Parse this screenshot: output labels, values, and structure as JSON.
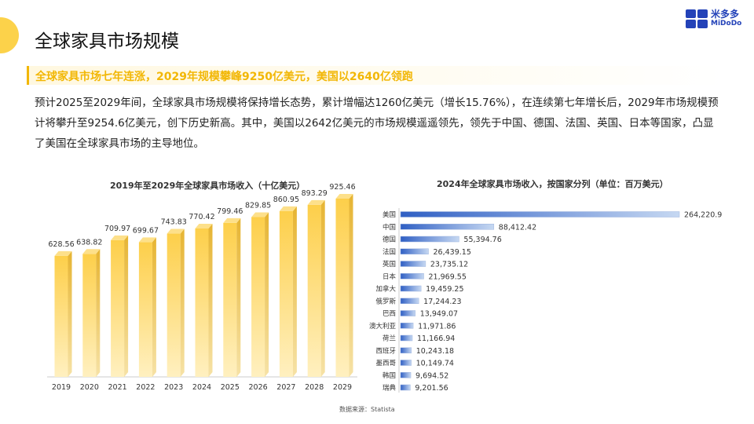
{
  "header": {
    "title": "全球家具市场规模",
    "logo_cn": "米多多",
    "logo_en": "MiDoDo"
  },
  "highlight": "全球家具市场七年连涨，2029年规模攀峰9250亿美元，美国以2640亿领跑",
  "paragraph": "预计2025至2029年间，全球家具市场规模将保持增长态势，累计增幅达1260亿美元（增长15.76%），在连续第七年增长后，2029年市场规模预计将攀升至9254.6亿美元，创下历史新高。其中，美国以2642亿美元的市场规模遥遥领先，领先于中国、德国、法国、英国、日本等国家，凸显了美国在全球家具市场的主导地位。",
  "source": "数据来源：Statista",
  "chart_data": [
    {
      "type": "bar",
      "title": "2019年至2029年全球家具市场收入（十亿美元）",
      "categories": [
        "2019",
        "2020",
        "2021",
        "2022",
        "2023",
        "2024",
        "2025",
        "2026",
        "2027",
        "2028",
        "2029"
      ],
      "values": [
        628.56,
        638.82,
        709.97,
        699.67,
        743.83,
        770.42,
        799.46,
        829.85,
        860.95,
        893.29,
        925.46
      ],
      "labels": [
        "628.56",
        "638.82",
        "709.97",
        "699.67",
        "743.83",
        "770.42",
        "799.46",
        "829.85",
        "860.95",
        "893.29",
        "925.46"
      ],
      "color": "#fcd24a",
      "ylim": [
        0,
        925.46
      ]
    },
    {
      "type": "bar",
      "orientation": "horizontal",
      "title": "2024年全球家具市场收入，按国家分列（单位：百万美元）",
      "categories": [
        "美国",
        "中国",
        "德国",
        "法国",
        "英国",
        "日本",
        "加拿大",
        "俄罗斯",
        "巴西",
        "澳大利亚",
        "荷兰",
        "西班牙",
        "墨西哥",
        "韩国",
        "瑞典"
      ],
      "values": [
        264220.9,
        88412.42,
        55394.76,
        26439.15,
        23735.12,
        21969.55,
        19459.25,
        17244.23,
        13949.07,
        11971.86,
        11166.94,
        10243.18,
        10149.74,
        9694.52,
        9201.56
      ],
      "labels": [
        "264,220.9",
        "88,412.42",
        "55,394.76",
        "26,439.15",
        "23,735.12",
        "21,969.55",
        "19,459.25",
        "17,244.23",
        "13,949.07",
        "11,971.86",
        "11,166.94",
        "10,243.18",
        "10,149.74",
        "9,694.52",
        "9,201.56"
      ],
      "color": "#3a66c8"
    }
  ]
}
